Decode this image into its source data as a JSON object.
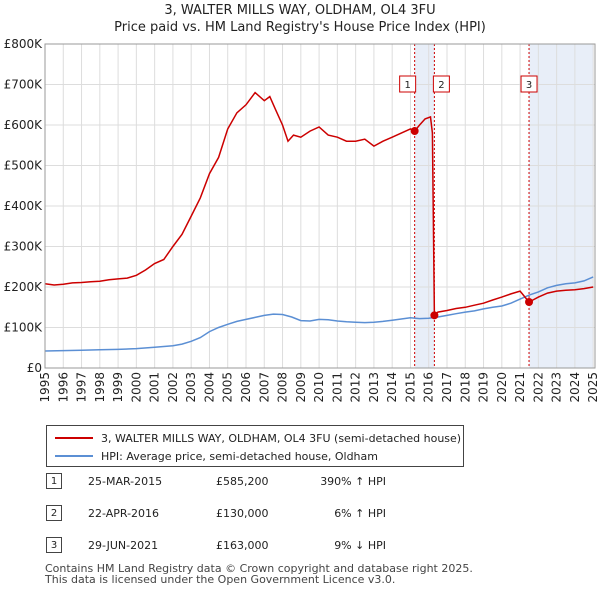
{
  "chart_data": {
    "type": "line",
    "title": "3, WALTER MILLS WAY, OLDHAM, OL4 3FU",
    "subtitle": "Price paid vs. HM Land Registry's House Price Index (HPI)",
    "xlabel": "",
    "ylabel": "",
    "xlim": [
      1995,
      2025.1
    ],
    "ylim": [
      0,
      800000
    ],
    "x_ticks": [
      "1995",
      "1996",
      "1997",
      "1998",
      "1999",
      "2000",
      "2001",
      "2002",
      "2003",
      "2004",
      "2005",
      "2006",
      "2007",
      "2008",
      "2009",
      "2010",
      "2011",
      "2012",
      "2013",
      "2014",
      "2015",
      "2016",
      "2017",
      "2018",
      "2019",
      "2020",
      "2021",
      "2022",
      "2023",
      "2024",
      "2025"
    ],
    "y_ticks": [
      {
        "value": 0,
        "label": "£0"
      },
      {
        "value": 100000,
        "label": "£100K"
      },
      {
        "value": 200000,
        "label": "£200K"
      },
      {
        "value": 300000,
        "label": "£300K"
      },
      {
        "value": 400000,
        "label": "£400K"
      },
      {
        "value": 500000,
        "label": "£500K"
      },
      {
        "value": 600000,
        "label": "£600K"
      },
      {
        "value": 700000,
        "label": "£700K"
      },
      {
        "value": 800000,
        "label": "£800K"
      }
    ],
    "grid": true,
    "series": [
      {
        "name": "3, WALTER MILLS WAY, OLDHAM, OL4 3FU (semi-detached house)",
        "color": "#cc0000",
        "x": [
          1995.0,
          1995.5,
          1996.0,
          1996.5,
          1997.0,
          1997.5,
          1998.0,
          1998.5,
          1999.0,
          1999.5,
          2000.0,
          2000.5,
          2001.0,
          2001.5,
          2002.0,
          2002.5,
          2003.0,
          2003.5,
          2004.0,
          2004.5,
          2005.0,
          2005.5,
          2006.0,
          2006.5,
          2007.0,
          2007.3,
          2007.6,
          2008.0,
          2008.3,
          2008.6,
          2009.0,
          2009.5,
          2010.0,
          2010.5,
          2011.0,
          2011.5,
          2012.0,
          2012.5,
          2013.0,
          2013.5,
          2014.0,
          2014.5,
          2015.0,
          2015.23,
          2015.5,
          2015.8,
          2016.1,
          2016.2,
          2016.31,
          2016.5,
          2017.0,
          2017.5,
          2018.0,
          2018.5,
          2019.0,
          2019.5,
          2020.0,
          2020.5,
          2021.0,
          2021.49,
          2021.7,
          2022.0,
          2022.5,
          2023.0,
          2023.5,
          2024.0,
          2024.5,
          2025.0
        ],
        "y": [
          208000,
          205000,
          207000,
          210000,
          211000,
          213000,
          214000,
          218000,
          220000,
          222000,
          229000,
          242000,
          258000,
          268000,
          300000,
          330000,
          375000,
          420000,
          480000,
          520000,
          590000,
          630000,
          650000,
          680000,
          660000,
          670000,
          640000,
          600000,
          560000,
          575000,
          570000,
          585000,
          595000,
          575000,
          570000,
          560000,
          560000,
          565000,
          548000,
          560000,
          570000,
          580000,
          590000,
          585200,
          600000,
          615000,
          620000,
          580000,
          130000,
          138000,
          142000,
          147000,
          150000,
          155000,
          160000,
          168000,
          175000,
          183000,
          190000,
          163000,
          168000,
          175000,
          185000,
          190000,
          192000,
          193000,
          196000,
          200000
        ]
      },
      {
        "name": "HPI: Average price, semi-detached house, Oldham",
        "color": "#5b8fd4",
        "x": [
          1995.0,
          1996.0,
          1997.0,
          1998.0,
          1999.0,
          2000.0,
          2001.0,
          2002.0,
          2002.5,
          2003.0,
          2003.5,
          2004.0,
          2004.5,
          2005.0,
          2005.5,
          2006.0,
          2006.5,
          2007.0,
          2007.5,
          2008.0,
          2008.5,
          2009.0,
          2009.5,
          2010.0,
          2010.5,
          2011.0,
          2011.5,
          2012.0,
          2012.5,
          2013.0,
          2013.5,
          2014.0,
          2014.5,
          2015.0,
          2015.5,
          2016.0,
          2016.5,
          2017.0,
          2017.5,
          2018.0,
          2018.5,
          2019.0,
          2019.5,
          2020.0,
          2020.5,
          2021.0,
          2021.5,
          2022.0,
          2022.5,
          2023.0,
          2023.5,
          2024.0,
          2024.5,
          2025.0
        ],
        "y": [
          42000,
          43000,
          44000,
          45000,
          46000,
          48000,
          51000,
          55000,
          59000,
          66000,
          75000,
          90000,
          100000,
          108000,
          115000,
          120000,
          125000,
          130000,
          133000,
          132000,
          126000,
          117000,
          116000,
          120000,
          119000,
          116000,
          114000,
          113000,
          112000,
          113000,
          115000,
          118000,
          121000,
          124000,
          122000,
          123000,
          126000,
          130000,
          134000,
          138000,
          141000,
          146000,
          150000,
          153000,
          160000,
          170000,
          180000,
          188000,
          198000,
          204000,
          208000,
          210000,
          215000,
          225000
        ]
      }
    ],
    "sale_markers": [
      {
        "label": "1",
        "x": 2015.23,
        "y": 585200
      },
      {
        "label": "2",
        "x": 2016.31,
        "y": 130000
      },
      {
        "label": "3",
        "x": 2021.49,
        "y": 163000
      }
    ],
    "shaded_ranges": [
      [
        2015.23,
        2016.31
      ],
      [
        2021.49,
        2025.0
      ]
    ]
  },
  "legend": {
    "property_label": "3, WALTER MILLS WAY, OLDHAM, OL4 3FU (semi-detached house)",
    "hpi_label": "HPI: Average price, semi-detached house, Oldham",
    "property_color": "#cc0000",
    "hpi_color": "#5b8fd4"
  },
  "sales": [
    {
      "num": "1",
      "date": "25-MAR-2015",
      "price": "£585,200",
      "hpi": "390% ↑ HPI"
    },
    {
      "num": "2",
      "date": "22-APR-2016",
      "price": "£130,000",
      "hpi": "6% ↑ HPI"
    },
    {
      "num": "3",
      "date": "29-JUN-2021",
      "price": "£163,000",
      "hpi": "9% ↓ HPI"
    }
  ],
  "footer": {
    "line1": "Contains HM Land Registry data © Crown copyright and database right 2025.",
    "line2": "This data is licensed under the Open Government Licence v3.0."
  }
}
